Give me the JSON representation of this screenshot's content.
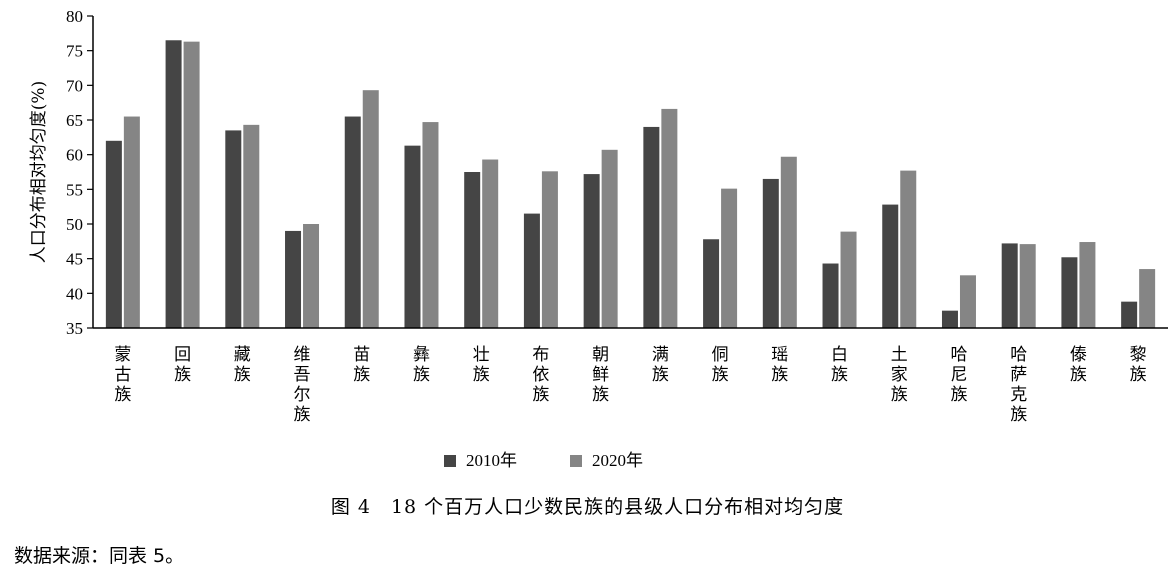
{
  "chart_data": {
    "type": "bar",
    "ylabel": "人口分布相对均匀度(%)",
    "ylim": [
      35,
      80
    ],
    "yticks": [
      35,
      40,
      45,
      50,
      55,
      60,
      65,
      70,
      75,
      80
    ],
    "grid": false,
    "legend_position": "bottom",
    "categories": [
      "蒙古族",
      "回族",
      "藏族",
      "维吾尔族",
      "苗族",
      "彝族",
      "壮族",
      "布依族",
      "朝鲜族",
      "满族",
      "侗族",
      "瑶族",
      "白族",
      "土家族",
      "哈尼族",
      "哈萨克族",
      "傣族",
      "黎族"
    ],
    "series": [
      {
        "name": "2010年",
        "color": "#454545",
        "values": [
          62.0,
          76.5,
          63.5,
          49.0,
          65.5,
          61.3,
          57.5,
          51.5,
          57.2,
          64.0,
          47.8,
          56.5,
          44.3,
          52.8,
          37.5,
          47.2,
          45.2,
          38.8
        ]
      },
      {
        "name": "2020年",
        "color": "#858585",
        "values": [
          65.5,
          76.3,
          64.3,
          50.0,
          69.3,
          64.7,
          59.3,
          57.6,
          60.7,
          66.6,
          55.1,
          59.7,
          48.9,
          57.7,
          42.6,
          47.1,
          47.4,
          43.5
        ]
      }
    ]
  },
  "caption": "图 4　18 个百万人口少数民族的县级人口分布相对均匀度",
  "source": "数据来源：同表 5。"
}
